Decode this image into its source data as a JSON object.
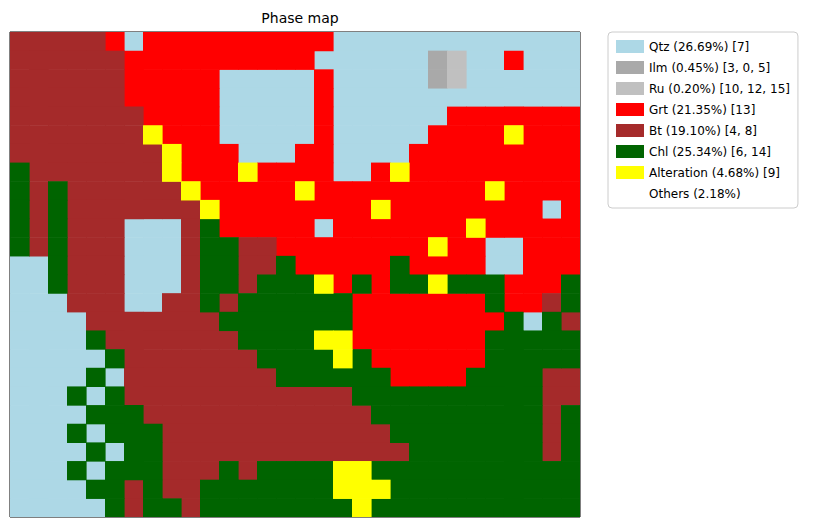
{
  "chart_data": {
    "type": "heatmap",
    "title": "Phase map",
    "tick_labels": false,
    "legend": "right",
    "phases": [
      {
        "name": "Qtz (26.69%) [7]",
        "color": "#add8e6"
      },
      {
        "name": "Ilm (0.45%) [3, 0, 5]",
        "color": "#a9a9a9"
      },
      {
        "name": "Ru (0.20%) [10, 12, 15]",
        "color": "#c0c0c0"
      },
      {
        "name": "Grt (21.35%) [13]",
        "color": "#ff0000"
      },
      {
        "name": "Bt (19.10%) [4, 8]",
        "color": "#a52a2a"
      },
      {
        "name": "Chl (25.34%) [6, 14]",
        "color": "#006400"
      },
      {
        "name": "Alteration (4.68%) [9]",
        "color": "#ffff00"
      },
      {
        "name": "Others (2.18%)",
        "color": "#ffffff"
      }
    ],
    "cells": [
      [
        4,
        4,
        4,
        4,
        4,
        3,
        0,
        3,
        3,
        3,
        3,
        3,
        3,
        3,
        3,
        3,
        3,
        0,
        0,
        0,
        0,
        0,
        0,
        0,
        0,
        0,
        0,
        0,
        0,
        0
      ],
      [
        4,
        4,
        4,
        4,
        4,
        4,
        3,
        3,
        3,
        3,
        3,
        3,
        3,
        3,
        3,
        3,
        0,
        0,
        0,
        0,
        0,
        0,
        1,
        2,
        0,
        0,
        3,
        0,
        0,
        0
      ],
      [
        4,
        4,
        4,
        4,
        4,
        4,
        3,
        3,
        3,
        3,
        3,
        0,
        0,
        0,
        0,
        0,
        3,
        0,
        0,
        0,
        0,
        0,
        1,
        2,
        0,
        0,
        0,
        0,
        0,
        0
      ],
      [
        4,
        4,
        4,
        4,
        4,
        4,
        3,
        3,
        3,
        3,
        3,
        0,
        0,
        0,
        0,
        0,
        3,
        0,
        0,
        0,
        0,
        0,
        0,
        0,
        0,
        0,
        0,
        0,
        0,
        0
      ],
      [
        4,
        4,
        4,
        4,
        4,
        4,
        4,
        3,
        3,
        3,
        3,
        0,
        0,
        0,
        0,
        0,
        3,
        0,
        0,
        0,
        0,
        0,
        0,
        3,
        3,
        3,
        3,
        3,
        3,
        3
      ],
      [
        4,
        4,
        4,
        4,
        4,
        4,
        4,
        6,
        3,
        3,
        3,
        0,
        0,
        0,
        0,
        0,
        3,
        0,
        0,
        0,
        0,
        0,
        3,
        3,
        3,
        3,
        6,
        3,
        3,
        3
      ],
      [
        4,
        4,
        4,
        4,
        4,
        4,
        4,
        4,
        6,
        3,
        3,
        3,
        0,
        0,
        0,
        3,
        3,
        0,
        0,
        0,
        0,
        3,
        3,
        3,
        3,
        3,
        3,
        3,
        3,
        3
      ],
      [
        5,
        4,
        4,
        4,
        4,
        4,
        4,
        4,
        6,
        3,
        3,
        3,
        6,
        3,
        3,
        3,
        3,
        0,
        0,
        3,
        6,
        3,
        3,
        3,
        3,
        3,
        3,
        3,
        3,
        3
      ],
      [
        5,
        4,
        5,
        4,
        4,
        4,
        4,
        4,
        4,
        6,
        3,
        3,
        3,
        3,
        3,
        6,
        3,
        3,
        3,
        3,
        3,
        3,
        3,
        3,
        3,
        6,
        3,
        3,
        3,
        3
      ],
      [
        5,
        4,
        5,
        4,
        4,
        4,
        4,
        4,
        4,
        4,
        6,
        3,
        3,
        3,
        3,
        3,
        3,
        3,
        3,
        6,
        3,
        3,
        3,
        3,
        3,
        3,
        3,
        3,
        0,
        3
      ],
      [
        5,
        4,
        5,
        4,
        4,
        4,
        0,
        0,
        0,
        4,
        5,
        3,
        3,
        3,
        3,
        3,
        0,
        3,
        3,
        3,
        3,
        3,
        3,
        3,
        6,
        3,
        3,
        3,
        3,
        3
      ],
      [
        5,
        4,
        5,
        4,
        4,
        4,
        0,
        0,
        0,
        4,
        5,
        5,
        4,
        4,
        3,
        3,
        3,
        3,
        3,
        3,
        3,
        3,
        6,
        3,
        3,
        0,
        0,
        3,
        3,
        3
      ],
      [
        0,
        0,
        5,
        4,
        4,
        4,
        0,
        0,
        0,
        4,
        5,
        5,
        4,
        4,
        5,
        3,
        3,
        3,
        3,
        3,
        5,
        3,
        3,
        3,
        3,
        0,
        0,
        3,
        3,
        3
      ],
      [
        0,
        0,
        5,
        4,
        4,
        4,
        0,
        0,
        0,
        4,
        5,
        5,
        4,
        5,
        5,
        5,
        6,
        3,
        5,
        3,
        5,
        5,
        6,
        5,
        5,
        5,
        3,
        3,
        3,
        5
      ],
      [
        0,
        0,
        0,
        4,
        4,
        4,
        0,
        0,
        4,
        4,
        5,
        4,
        5,
        5,
        5,
        5,
        5,
        5,
        3,
        3,
        3,
        3,
        3,
        3,
        3,
        5,
        3,
        3,
        4,
        5
      ],
      [
        0,
        0,
        0,
        0,
        4,
        4,
        4,
        4,
        4,
        4,
        4,
        5,
        5,
        5,
        5,
        5,
        5,
        5,
        3,
        3,
        3,
        3,
        3,
        3,
        3,
        3,
        5,
        0,
        5,
        4
      ],
      [
        0,
        0,
        0,
        0,
        5,
        4,
        4,
        4,
        4,
        4,
        4,
        4,
        5,
        5,
        5,
        5,
        6,
        6,
        3,
        3,
        3,
        3,
        3,
        3,
        3,
        5,
        5,
        5,
        5,
        5
      ],
      [
        0,
        0,
        0,
        0,
        0,
        5,
        4,
        4,
        4,
        4,
        4,
        4,
        4,
        5,
        5,
        5,
        5,
        6,
        5,
        3,
        3,
        3,
        3,
        3,
        3,
        5,
        5,
        5,
        5,
        5
      ],
      [
        0,
        0,
        0,
        0,
        5,
        0,
        4,
        4,
        4,
        4,
        4,
        4,
        4,
        4,
        5,
        5,
        5,
        5,
        5,
        5,
        3,
        3,
        3,
        3,
        5,
        5,
        5,
        5,
        4,
        4
      ],
      [
        0,
        0,
        0,
        5,
        0,
        5,
        4,
        4,
        4,
        4,
        4,
        4,
        4,
        4,
        4,
        4,
        4,
        4,
        5,
        5,
        5,
        5,
        5,
        5,
        5,
        5,
        5,
        5,
        4,
        4
      ],
      [
        0,
        0,
        0,
        0,
        5,
        5,
        5,
        4,
        4,
        4,
        4,
        4,
        4,
        4,
        4,
        4,
        4,
        4,
        4,
        5,
        5,
        5,
        5,
        5,
        5,
        5,
        5,
        5,
        4,
        5
      ],
      [
        0,
        0,
        0,
        5,
        0,
        5,
        5,
        5,
        4,
        4,
        4,
        4,
        4,
        4,
        4,
        4,
        4,
        4,
        4,
        4,
        5,
        5,
        5,
        5,
        5,
        5,
        5,
        5,
        4,
        5
      ],
      [
        0,
        0,
        0,
        0,
        5,
        0,
        5,
        5,
        4,
        4,
        4,
        4,
        4,
        4,
        4,
        4,
        4,
        4,
        4,
        4,
        4,
        5,
        5,
        5,
        5,
        5,
        5,
        5,
        4,
        5
      ],
      [
        0,
        0,
        0,
        5,
        0,
        5,
        5,
        5,
        4,
        4,
        4,
        5,
        4,
        5,
        5,
        5,
        5,
        6,
        6,
        5,
        5,
        5,
        5,
        5,
        5,
        5,
        5,
        5,
        5,
        5
      ],
      [
        0,
        0,
        0,
        0,
        5,
        5,
        4,
        5,
        4,
        4,
        5,
        5,
        5,
        5,
        5,
        5,
        5,
        6,
        6,
        6,
        5,
        5,
        5,
        5,
        5,
        5,
        5,
        5,
        5,
        5
      ],
      [
        0,
        0,
        0,
        0,
        0,
        5,
        4,
        5,
        5,
        4,
        5,
        5,
        5,
        5,
        5,
        5,
        5,
        5,
        6,
        5,
        5,
        5,
        5,
        5,
        5,
        5,
        5,
        5,
        5,
        5
      ]
    ]
  }
}
